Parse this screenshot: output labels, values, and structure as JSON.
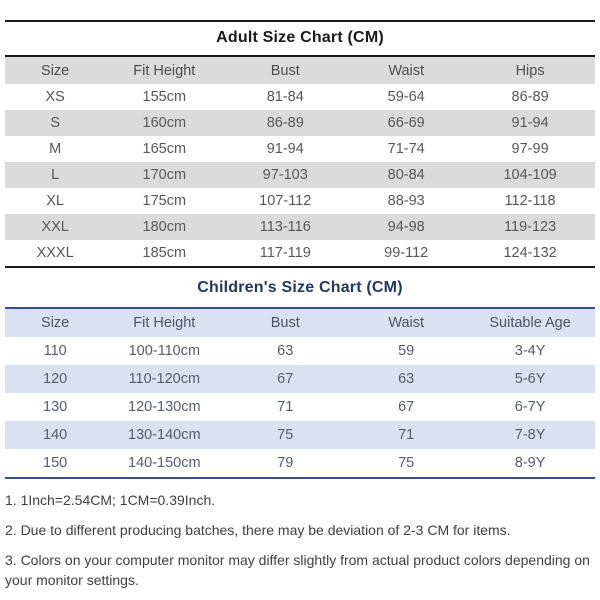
{
  "adult_chart": {
    "title": "Adult Size Chart (CM)",
    "headers": [
      "Size",
      "Fit Height",
      "Bust",
      "Waist",
      "Hips"
    ],
    "rows": [
      [
        "XS",
        "155cm",
        "81-84",
        "59-64",
        "86-89"
      ],
      [
        "S",
        "160cm",
        "86-89",
        "66-69",
        "91-94"
      ],
      [
        "M",
        "165cm",
        "91-94",
        "71-74",
        "97-99"
      ],
      [
        "L",
        "170cm",
        "97-103",
        "80-84",
        "104-109"
      ],
      [
        "XL",
        "175cm",
        "107-112",
        "88-93",
        "112-118"
      ],
      [
        "XXL",
        "180cm",
        "113-116",
        "94-98",
        "119-123"
      ],
      [
        "XXXL",
        "185cm",
        "117-119",
        "99-112",
        "124-132"
      ]
    ]
  },
  "children_chart": {
    "title": "Children's Size Chart (CM)",
    "headers": [
      "Size",
      "Fit Height",
      "Bust",
      "Waist",
      "Suitable Age"
    ],
    "rows": [
      [
        "110",
        "100-110cm",
        "63",
        "59",
        "3-4Y"
      ],
      [
        "120",
        "110-120cm",
        "67",
        "63",
        "5-6Y"
      ],
      [
        "130",
        "120-130cm",
        "71",
        "67",
        "6-7Y"
      ],
      [
        "140",
        "130-140cm",
        "75",
        "71",
        "7-8Y"
      ],
      [
        "150",
        "140-150cm",
        "79",
        "75",
        "8-9Y"
      ]
    ]
  },
  "notes": [
    "1. 1Inch=2.54CM; 1CM=0.39Inch.",
    "2. Due to different producing batches, there may be deviation of 2-3 CM for items.",
    "3. Colors on your computer monitor may differ slightly from actual product colors depending on your monitor settings."
  ],
  "colors": {
    "adult_stripe": "#dbdbdb",
    "children_stripe": "#d9e2f3",
    "children_title": "#1f3864",
    "blue_line": "#35509b",
    "black_line": "#1a1a1a",
    "table_text": "#575757",
    "note_text": "#3f3f3f"
  }
}
